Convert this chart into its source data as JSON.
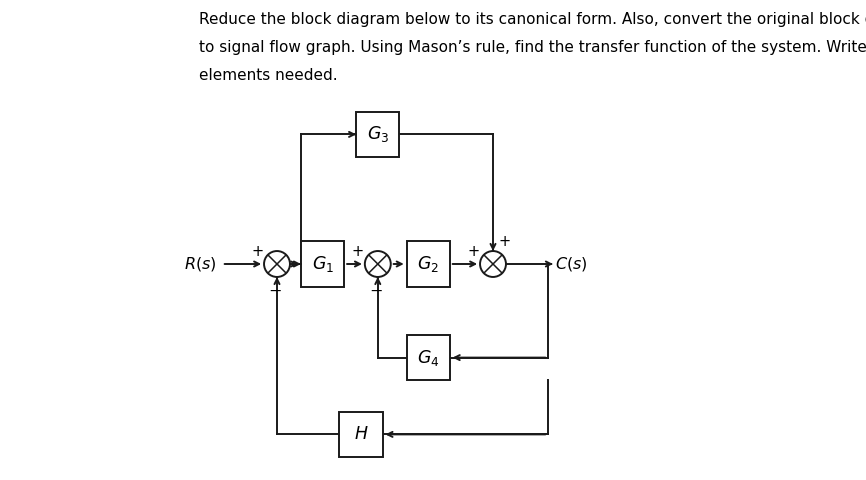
{
  "title_lines": [
    "Reduce the block diagram below to its canonical form. Also, convert the original block diagram",
    "to signal flow graph. Using Mason’s rule, find the transfer function of the system. Write all the",
    "elements needed."
  ],
  "bg_color": "#ffffff",
  "text_color": "#000000",
  "line_color": "#1a1a1a",
  "font_size_title": 11.0,
  "font_size_label": 11.5,
  "font_size_block": 12.5,
  "font_size_sign": 10.5
}
